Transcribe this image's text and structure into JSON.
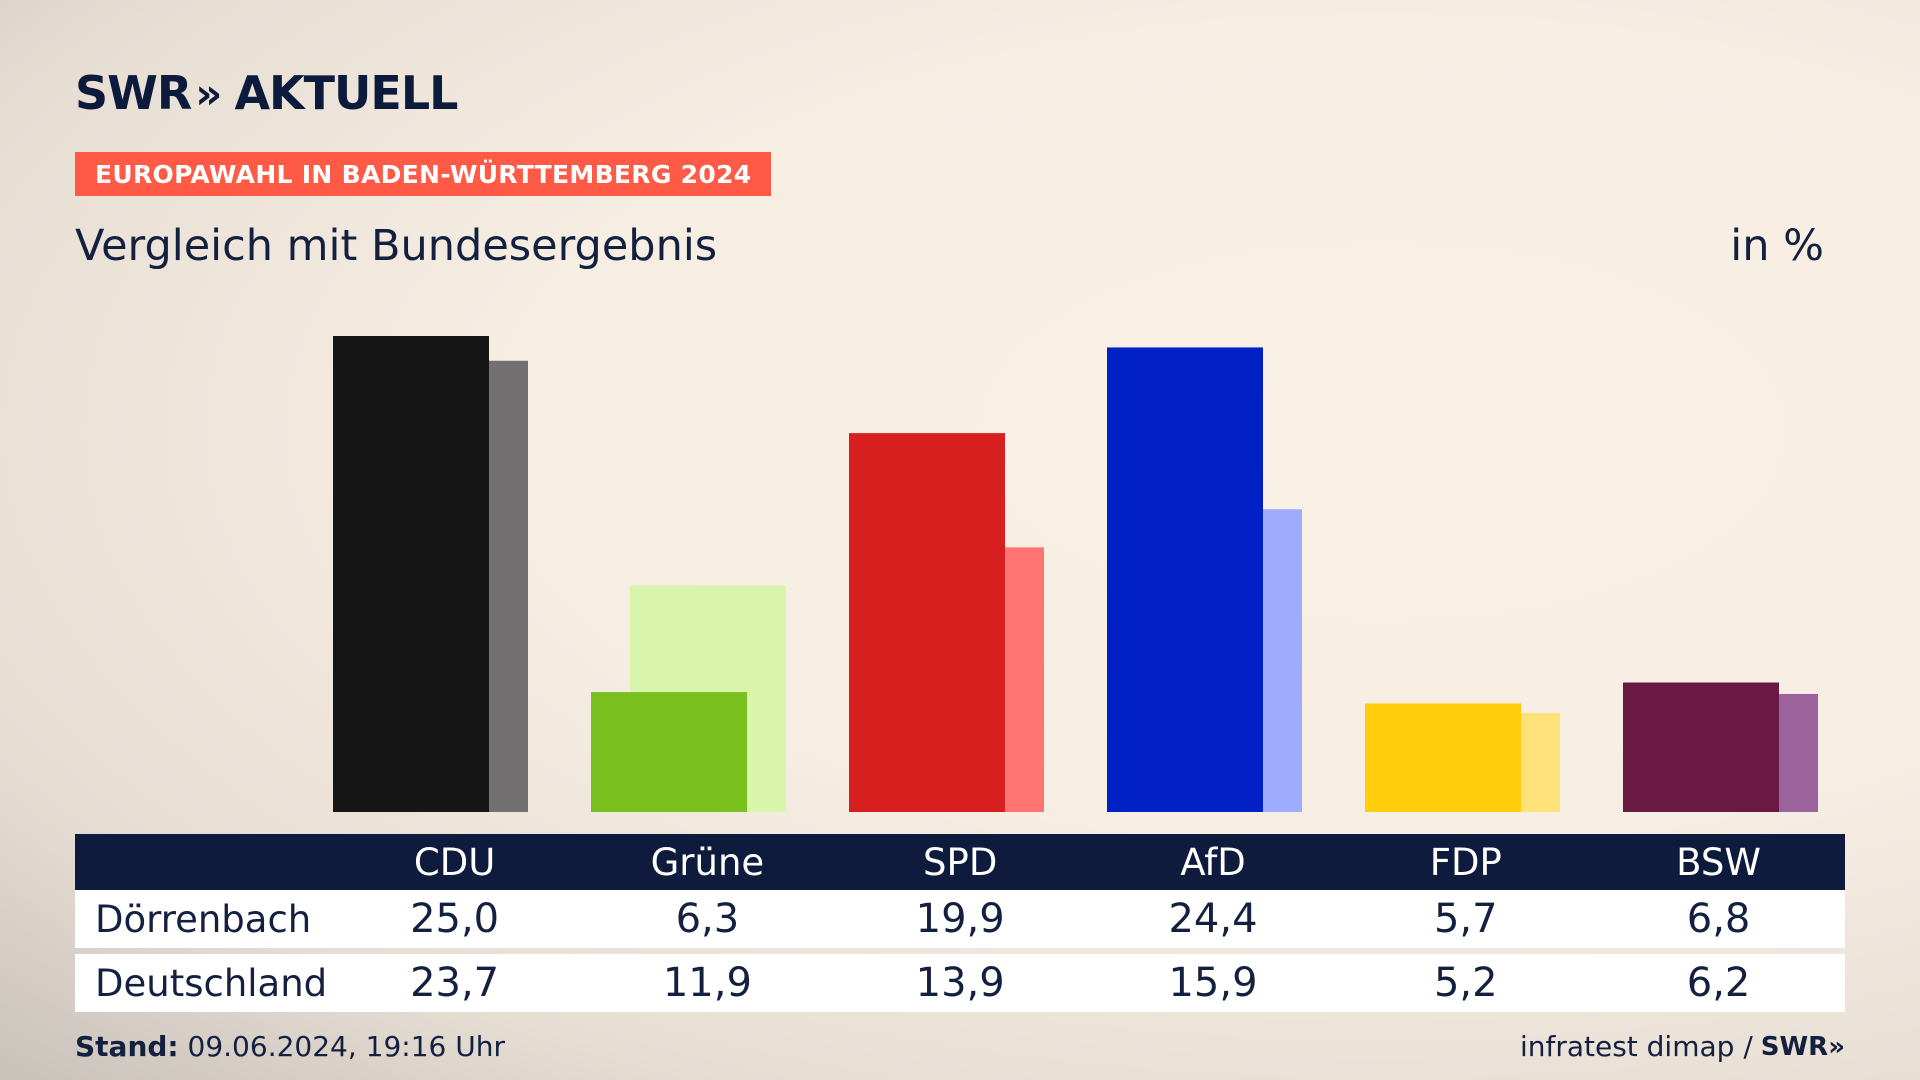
{
  "header": {
    "logo_brand": "SWR",
    "logo_chevrons": "»",
    "logo_product": "AKTUELL",
    "banner": "EUROPAWAHL IN BADEN-WÜRTTEMBERG 2024",
    "subtitle": "Vergleich mit Bundesergebnis",
    "unit": "in %"
  },
  "chart_data": {
    "type": "bar",
    "title": "",
    "categories": [
      "CDU",
      "Grüne",
      "SPD",
      "AfD",
      "FDP",
      "BSW"
    ],
    "series": [
      {
        "name": "Dörrenbach",
        "values": [
          25.0,
          6.3,
          19.9,
          24.4,
          5.7,
          6.8
        ]
      },
      {
        "name": "Deutschland",
        "values": [
          23.7,
          11.9,
          13.9,
          15.9,
          5.2,
          6.2
        ]
      }
    ],
    "colors": {
      "primary": [
        "#161616",
        "#79bf1d",
        "#d71f1f",
        "#0120c6",
        "#ffcd0b",
        "#6a1942"
      ],
      "secondary": [
        "#727070",
        "#d8f5ab",
        "#ff7470",
        "#9eabff",
        "#ffe17a",
        "#9b629b"
      ]
    },
    "ylim": [
      0,
      25
    ],
    "grid": false,
    "legend": "none"
  },
  "table": {
    "headers": [
      "CDU",
      "Grüne",
      "SPD",
      "AfD",
      "FDP",
      "BSW"
    ],
    "rows": [
      {
        "label": "Dörrenbach",
        "values": [
          "25,0",
          "6,3",
          "19,9",
          "24,4",
          "5,7",
          "6,8"
        ]
      },
      {
        "label": "Deutschland",
        "values": [
          "23,7",
          "11,9",
          "13,9",
          "15,9",
          "5,2",
          "6,2"
        ]
      }
    ]
  },
  "footer": {
    "stand_label": "Stand:",
    "stand_value": "09.06.2024, 19:16 Uhr",
    "source": "infratest dimap /",
    "source_logo": "SWR»"
  }
}
